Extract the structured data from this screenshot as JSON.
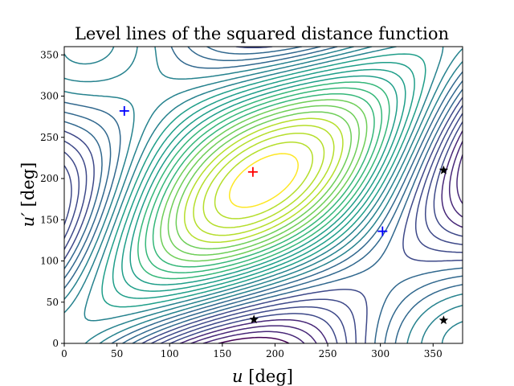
{
  "chart_data": {
    "type": "contour",
    "title": "Level lines of the squared distance function",
    "xlabel_main": "u",
    "xlabel_unit": " [deg]",
    "ylabel_main": "u′",
    "ylabel_unit": " [deg]",
    "xlim": [
      0,
      378
    ],
    "ylim": [
      0,
      360
    ],
    "xticks": [
      0,
      50,
      100,
      150,
      200,
      250,
      300,
      350
    ],
    "yticks": [
      0,
      50,
      100,
      150,
      200,
      250,
      300,
      350
    ],
    "grid": false,
    "colormap": "viridis",
    "markers": [
      {
        "kind": "plus",
        "color": "#0000ff",
        "x": 57,
        "y": 282
      },
      {
        "kind": "plus",
        "color": "#0000ff",
        "x": 302,
        "y": 136
      },
      {
        "kind": "plus",
        "color": "#ff0000",
        "x": 179,
        "y": 208
      },
      {
        "kind": "star",
        "color": "#000000",
        "x": 360,
        "y": 210
      },
      {
        "kind": "star",
        "color": "#000000",
        "x": 180,
        "y": 29
      },
      {
        "kind": "star",
        "color": "#000000",
        "x": 360,
        "y": 28
      }
    ]
  }
}
